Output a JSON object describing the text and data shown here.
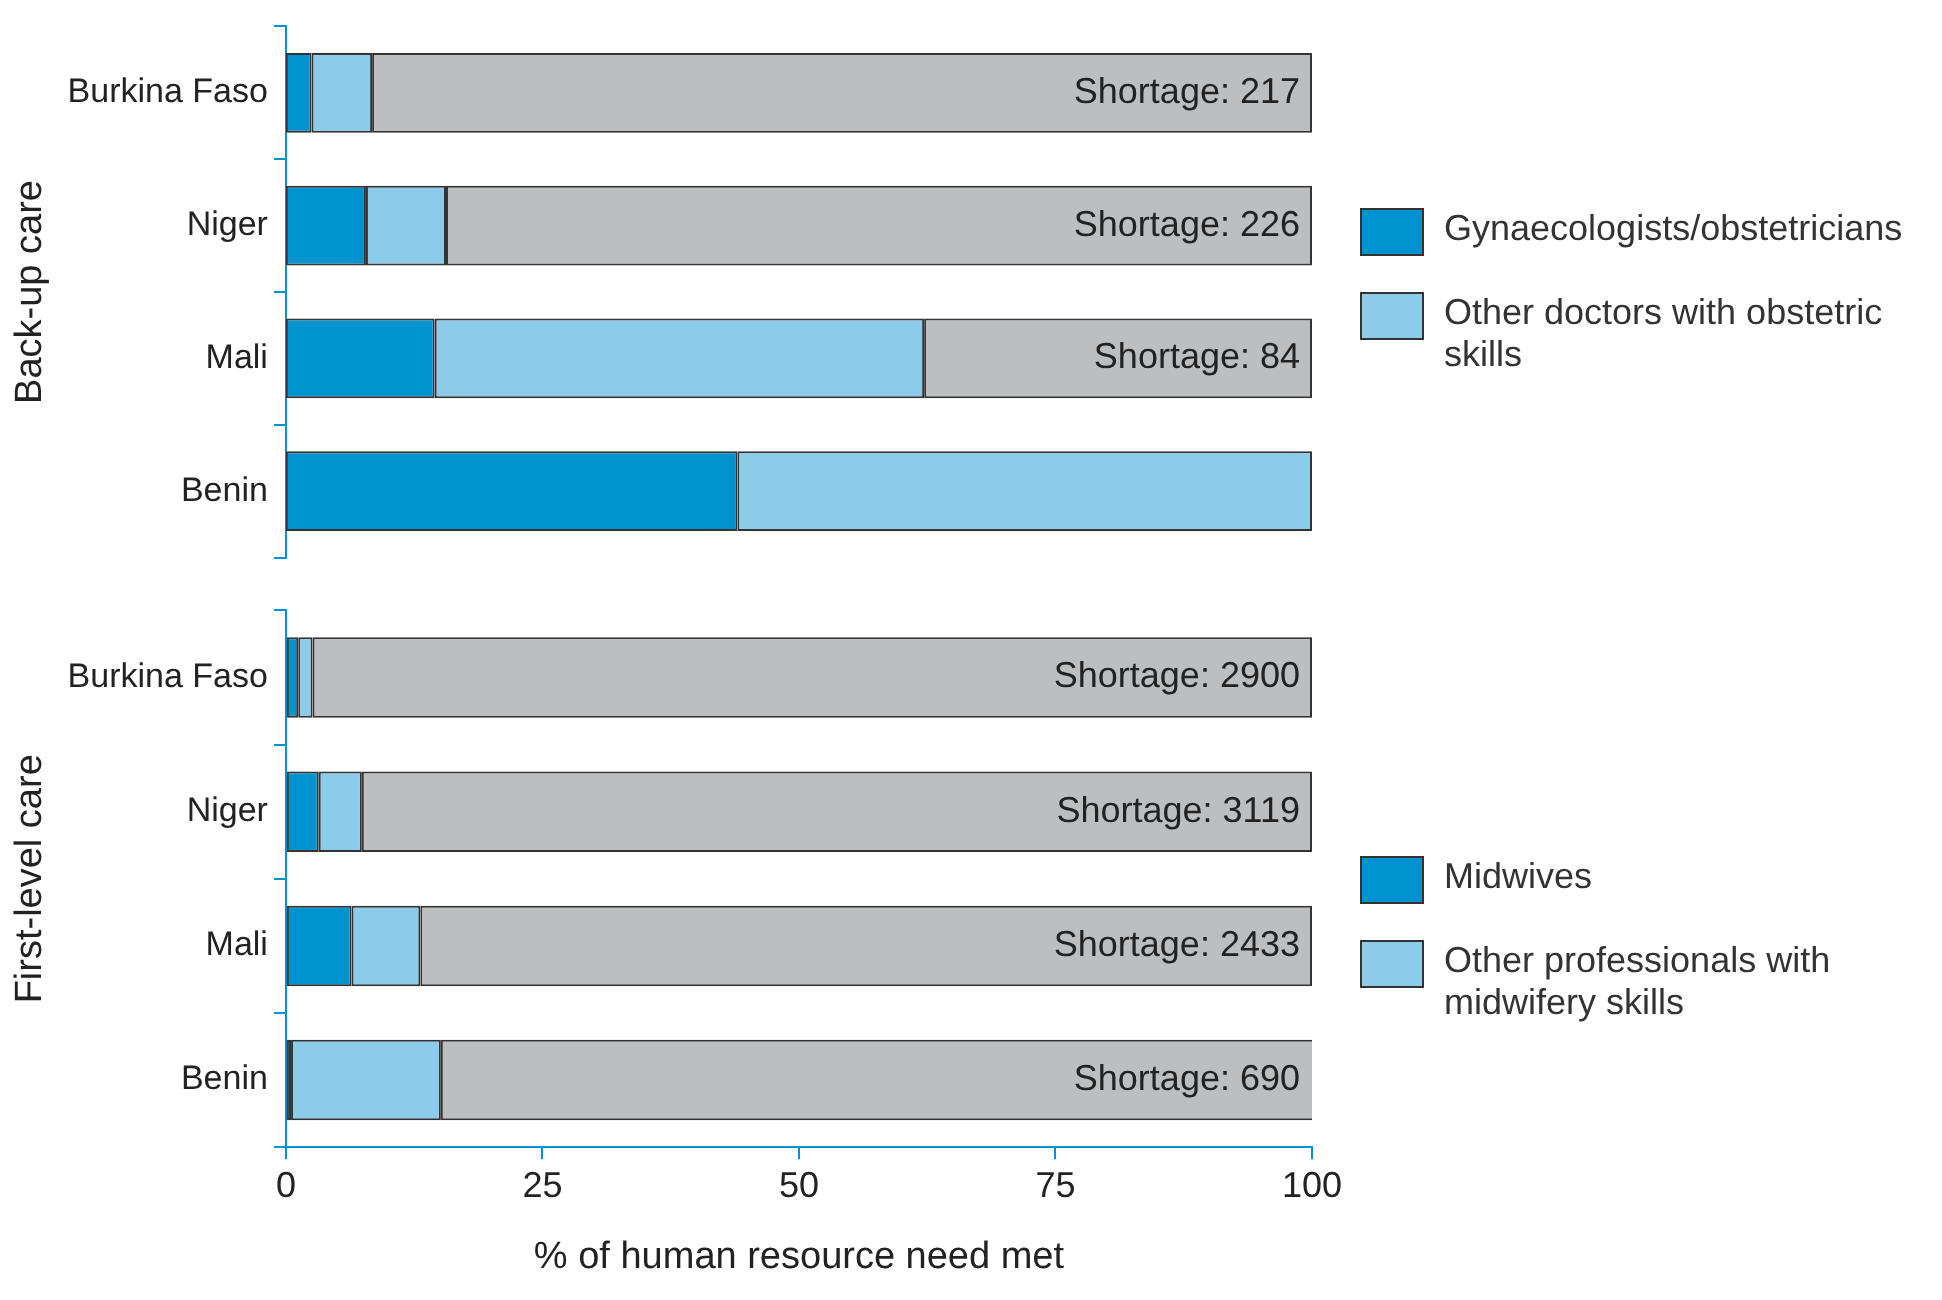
{
  "chart_data": [
    {
      "type": "bar",
      "orientation": "horizontal",
      "stacked": true,
      "ylabel": "Back-up care",
      "categories": [
        "Burkina Faso",
        "Niger",
        "Mali",
        "Benin"
      ],
      "xlim": [
        0,
        100
      ],
      "tick_labels": "y",
      "legend": "right",
      "series": [
        {
          "name": "Gynaecologists/obstetricians",
          "color": "#0093d0",
          "values": [
            2.5,
            7.8,
            14.5,
            44.0
          ]
        },
        {
          "name": "Other doctors with obstetric skills",
          "color": "#8ccbea",
          "values": [
            5.9,
            7.8,
            47.7,
            56.0
          ]
        },
        {
          "color": "#bcbec0",
          "values": [
            91.6,
            84.4,
            37.8,
            0
          ]
        }
      ],
      "annotations": [
        "Shortage: 217",
        "Shortage: 226",
        "Shortage: 84"
      ]
    },
    {
      "type": "bar",
      "orientation": "horizontal",
      "stacked": true,
      "ylabel": "First-level care",
      "xlabel": "% of human resource need met",
      "categories": [
        "Burkina Faso",
        "Niger",
        "Mali",
        "Benin"
      ],
      "xlim": [
        0,
        100
      ],
      "xticks": [
        0,
        25,
        50,
        75,
        100
      ],
      "legend": "right",
      "series": [
        {
          "name": "Midwives",
          "color": "#0093d0",
          "values": [
            1.2,
            3.2,
            6.4,
            0.5
          ]
        },
        {
          "name": "Other professionals with midwifery skills",
          "color": "#8ccbea",
          "values": [
            1.4,
            4.2,
            6.7,
            14.6
          ]
        },
        {
          "color": "#bcbec0",
          "values": [
            97.4,
            92.6,
            86.9,
            85.1
          ]
        }
      ],
      "annotations": [
        "Shortage: 2900",
        "Shortage: 3119",
        "Shortage: 2433",
        "Shortage: 690"
      ]
    }
  ]
}
